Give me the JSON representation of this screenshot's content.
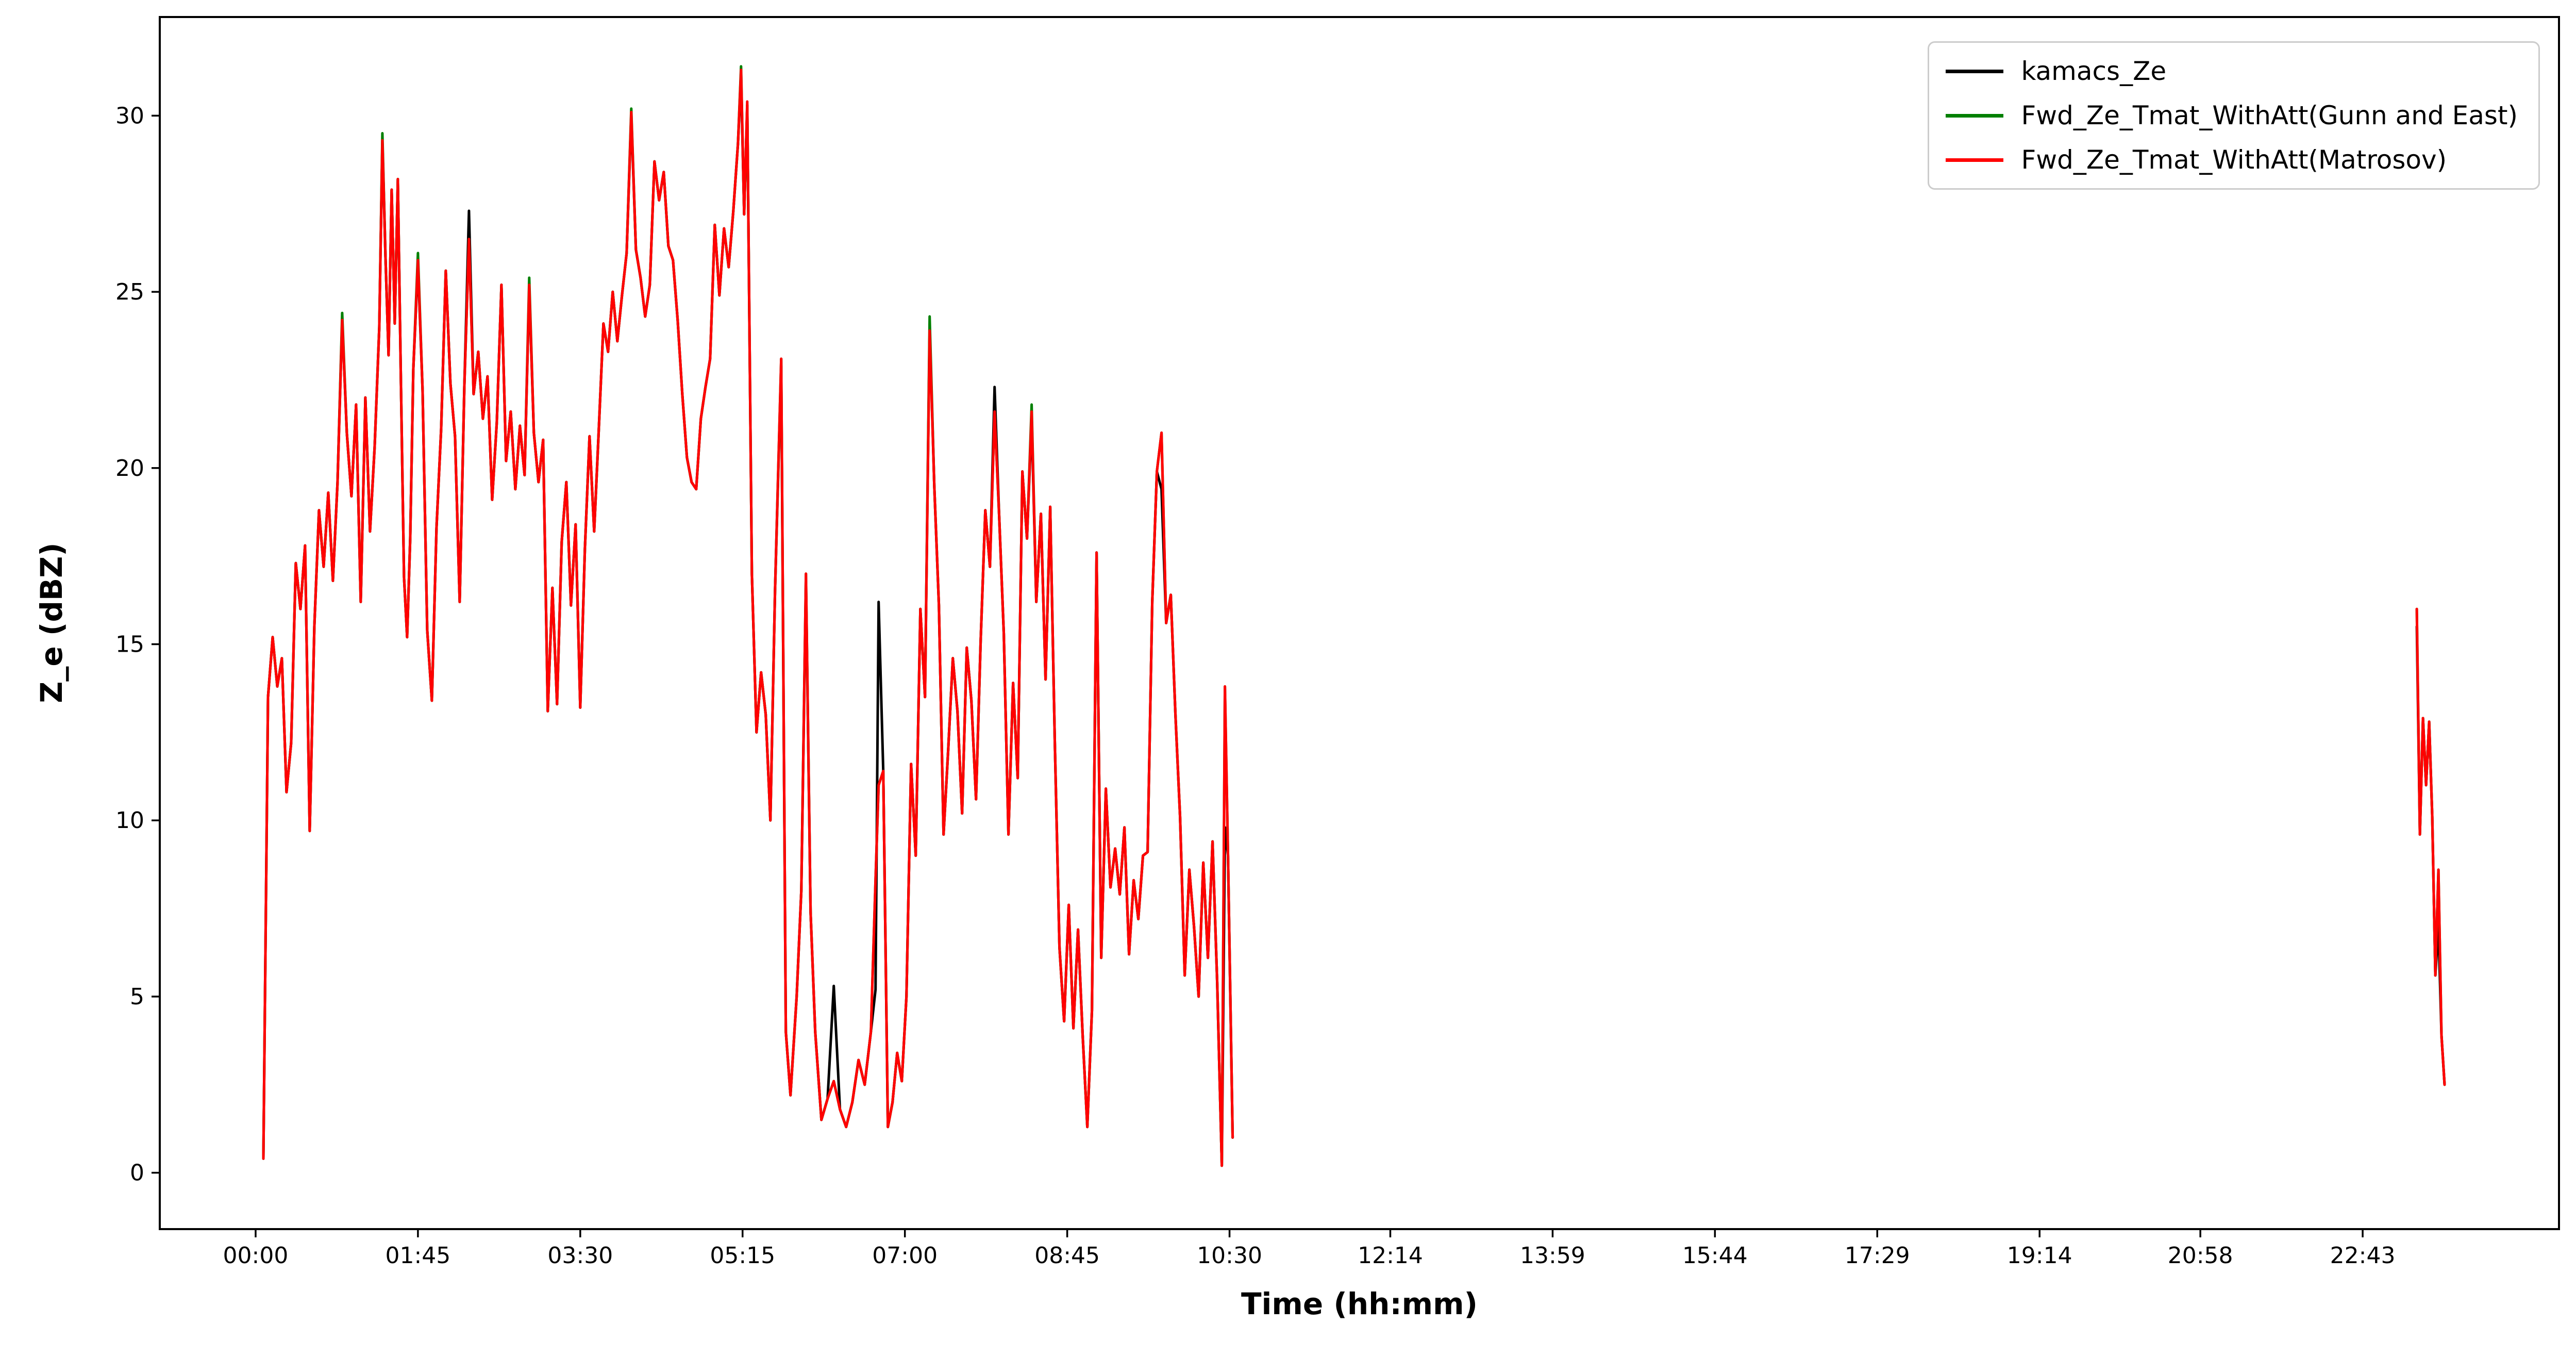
{
  "chart_data": {
    "type": "line",
    "title": "",
    "xlabel": "Time (hh:mm)",
    "ylabel": "Z_e (dBZ)",
    "legend_position": "upper right",
    "grid": false,
    "x_unit": "minutes since 00:00",
    "xlim": [
      -62,
      1490
    ],
    "ylim": [
      -1.6,
      32.8
    ],
    "y_ticks": [
      0,
      5,
      10,
      15,
      20,
      25,
      30
    ],
    "x_ticks": [
      {
        "t": 0,
        "label": "00:00"
      },
      {
        "t": 105,
        "label": "01:45"
      },
      {
        "t": 210,
        "label": "03:30"
      },
      {
        "t": 315,
        "label": "05:15"
      },
      {
        "t": 420,
        "label": "07:00"
      },
      {
        "t": 525,
        "label": "08:45"
      },
      {
        "t": 630,
        "label": "10:30"
      },
      {
        "t": 734,
        "label": "12:14"
      },
      {
        "t": 839,
        "label": "13:59"
      },
      {
        "t": 944,
        "label": "15:44"
      },
      {
        "t": 1049,
        "label": "17:29"
      },
      {
        "t": 1154,
        "label": "19:14"
      },
      {
        "t": 1258,
        "label": "20:58"
      },
      {
        "t": 1363,
        "label": "22:43"
      }
    ],
    "x": [
      5,
      8,
      11,
      14,
      17,
      20,
      23,
      26,
      29,
      32,
      35,
      38,
      41,
      44,
      47,
      50,
      53,
      56,
      59,
      62,
      65,
      68,
      71,
      74,
      77,
      80,
      82,
      84,
      86,
      88,
      90,
      92,
      94,
      96,
      98,
      100,
      102,
      105,
      108,
      111,
      114,
      117,
      120,
      123,
      126,
      129,
      132,
      135,
      138,
      141,
      144,
      147,
      150,
      153,
      156,
      159,
      162,
      165,
      168,
      171,
      174,
      177,
      180,
      183,
      186,
      189,
      192,
      195,
      198,
      201,
      204,
      207,
      210,
      213,
      216,
      219,
      222,
      225,
      228,
      231,
      234,
      237,
      240,
      243,
      246,
      249,
      252,
      255,
      258,
      261,
      264,
      267,
      270,
      273,
      276,
      279,
      282,
      285,
      288,
      291,
      294,
      297,
      300,
      303,
      306,
      309,
      312,
      314,
      316,
      318,
      321,
      324,
      327,
      330,
      333,
      336,
      340,
      343,
      346,
      350,
      353,
      356,
      359,
      362,
      366,
      370,
      374,
      378,
      382,
      386,
      390,
      394,
      398,
      401,
      403,
      406,
      409,
      412,
      415,
      418,
      421,
      424,
      427,
      430,
      433,
      436,
      439,
      442,
      445,
      448,
      451,
      454,
      457,
      460,
      463,
      466,
      469,
      472,
      475,
      478,
      481,
      484,
      487,
      490,
      493,
      496,
      499,
      502,
      505,
      508,
      511,
      514,
      517,
      520,
      523,
      526,
      529,
      532,
      535,
      538,
      541,
      544,
      547,
      550,
      553,
      556,
      559,
      562,
      565,
      568,
      571,
      574,
      577,
      580,
      583,
      586,
      589,
      592,
      595,
      598,
      601,
      604,
      607,
      610,
      613,
      616,
      619,
      622,
      625,
      627,
      629,
      632,
      1000,
      1398,
      1400,
      1402,
      1404,
      1406,
      1408,
      1410,
      1412,
      1414,
      1416
    ],
    "series": [
      {
        "name": "kamacs_Ze",
        "color": "#000000",
        "values": [
          0.4,
          13.5,
          15.2,
          13.8,
          14.6,
          10.8,
          12.2,
          17.3,
          16.0,
          17.8,
          9.7,
          15.5,
          18.8,
          17.2,
          19.3,
          16.8,
          19.6,
          24.2,
          21.0,
          19.2,
          21.8,
          16.2,
          22.0,
          18.2,
          20.6,
          24.0,
          29.3,
          26.0,
          23.2,
          27.9,
          24.1,
          28.2,
          22.4,
          16.9,
          15.2,
          18.0,
          22.8,
          25.8,
          22.2,
          15.4,
          13.4,
          18.3,
          21.1,
          25.6,
          22.4,
          20.9,
          16.2,
          22.3,
          27.3,
          22.1,
          23.3,
          21.4,
          22.6,
          19.1,
          21.3,
          25.2,
          20.2,
          21.6,
          19.4,
          21.2,
          19.8,
          25.1,
          21.0,
          19.6,
          20.8,
          13.1,
          16.6,
          13.3,
          17.9,
          19.6,
          16.1,
          18.4,
          13.2,
          17.7,
          20.9,
          18.2,
          21.1,
          24.1,
          23.3,
          25.0,
          23.6,
          24.9,
          26.1,
          30.0,
          26.2,
          25.4,
          24.3,
          25.2,
          28.7,
          27.6,
          28.4,
          26.3,
          25.9,
          24.2,
          22.1,
          20.3,
          19.6,
          19.4,
          21.4,
          22.3,
          23.1,
          26.9,
          24.9,
          26.8,
          25.7,
          27.3,
          29.2,
          31.1,
          27.2,
          30.3,
          17.0,
          12.5,
          14.2,
          13.0,
          10.0,
          16.5,
          22.9,
          4.0,
          2.2,
          5.0,
          8.0,
          16.8,
          7.4,
          4.0,
          1.5,
          2.1,
          5.3,
          1.8,
          1.3,
          2.0,
          3.2,
          2.5,
          4.0,
          5.2,
          16.2,
          11.4,
          1.3,
          2.0,
          3.4,
          2.6,
          5.0,
          11.6,
          9.0,
          16.0,
          13.5,
          24.0,
          19.5,
          16.1,
          9.6,
          12.0,
          14.6,
          13.1,
          10.2,
          14.9,
          13.4,
          10.6,
          15.1,
          18.8,
          17.2,
          22.3,
          18.6,
          15.3,
          9.6,
          13.9,
          11.2,
          19.9,
          18.0,
          21.4,
          16.2,
          18.7,
          14.0,
          18.9,
          12.2,
          6.4,
          4.3,
          7.6,
          4.1,
          6.9,
          3.9,
          1.3,
          4.6,
          17.6,
          6.1,
          10.9,
          8.1,
          9.2,
          7.9,
          9.8,
          6.2,
          8.3,
          7.2,
          9.0,
          9.1,
          16.2,
          19.9,
          19.4,
          15.6,
          16.4,
          13.0,
          10.1,
          5.6,
          8.6,
          7.0,
          5.0,
          8.8,
          6.1,
          9.4,
          5.4,
          0.2,
          9.8,
          9.0,
          1.0,
          null,
          15.5,
          9.6,
          12.9,
          11.0,
          12.8,
          10.1,
          5.6,
          7.0,
          3.9,
          2.5
        ]
      },
      {
        "name": "Fwd_Ze_Tmat_WithAtt(Gunn and East)",
        "color": "#008000",
        "values": [
          0.4,
          13.5,
          15.2,
          13.8,
          14.6,
          10.8,
          12.2,
          17.3,
          16.0,
          17.8,
          9.7,
          15.5,
          18.8,
          17.2,
          19.3,
          16.8,
          19.6,
          24.4,
          21.0,
          19.2,
          21.8,
          16.2,
          22.0,
          18.2,
          20.6,
          24.0,
          29.5,
          26.0,
          23.2,
          27.9,
          24.1,
          28.2,
          22.4,
          16.9,
          15.2,
          18.0,
          22.8,
          26.1,
          22.2,
          15.4,
          13.4,
          18.3,
          21.1,
          25.6,
          22.4,
          20.9,
          16.2,
          22.3,
          26.5,
          22.1,
          23.3,
          21.4,
          22.6,
          19.1,
          21.3,
          25.2,
          20.2,
          21.6,
          19.4,
          21.2,
          19.8,
          25.4,
          21.0,
          19.6,
          20.8,
          13.1,
          16.6,
          13.3,
          17.9,
          19.6,
          16.1,
          18.4,
          13.2,
          17.7,
          20.9,
          18.2,
          21.1,
          24.1,
          23.3,
          25.0,
          23.6,
          24.9,
          26.1,
          30.2,
          26.2,
          25.4,
          24.3,
          25.2,
          28.7,
          27.6,
          28.4,
          26.3,
          25.9,
          24.2,
          22.1,
          20.3,
          19.6,
          19.4,
          21.4,
          22.3,
          23.1,
          26.9,
          24.9,
          26.8,
          25.7,
          27.3,
          29.2,
          31.4,
          27.2,
          30.3,
          17.0,
          12.5,
          14.2,
          13.0,
          10.0,
          16.5,
          23.1,
          4.0,
          2.2,
          5.0,
          8.0,
          17.0,
          7.4,
          4.0,
          1.5,
          2.1,
          2.6,
          1.8,
          1.3,
          2.0,
          3.2,
          2.5,
          4.0,
          8.3,
          11.0,
          11.4,
          1.3,
          2.0,
          3.4,
          2.6,
          5.0,
          11.6,
          9.0,
          16.0,
          13.5,
          24.3,
          19.5,
          16.1,
          9.6,
          12.0,
          14.6,
          13.1,
          10.2,
          14.9,
          13.4,
          10.6,
          15.1,
          18.8,
          17.2,
          21.6,
          18.6,
          15.3,
          9.6,
          13.9,
          11.2,
          19.9,
          18.0,
          21.8,
          16.2,
          18.7,
          14.0,
          18.9,
          12.2,
          6.4,
          4.3,
          7.6,
          4.1,
          6.9,
          3.9,
          1.3,
          4.6,
          17.6,
          6.1,
          10.9,
          8.1,
          9.2,
          7.9,
          9.8,
          6.2,
          8.3,
          7.2,
          9.0,
          9.1,
          16.2,
          19.9,
          21.0,
          15.6,
          16.4,
          13.0,
          10.1,
          5.6,
          8.6,
          7.0,
          5.0,
          8.8,
          6.1,
          9.4,
          5.4,
          0.2,
          13.8,
          9.0,
          1.0,
          null,
          16.0,
          9.6,
          12.9,
          11.0,
          12.8,
          10.1,
          5.6,
          8.6,
          3.9,
          2.5
        ]
      },
      {
        "name": "Fwd_Ze_Tmat_WithAtt(Matrosov)",
        "color": "#ff0000",
        "values": [
          0.4,
          13.5,
          15.2,
          13.8,
          14.6,
          10.8,
          12.2,
          17.3,
          16.0,
          17.8,
          9.7,
          15.5,
          18.8,
          17.2,
          19.3,
          16.8,
          19.6,
          24.2,
          21.0,
          19.2,
          21.8,
          16.2,
          22.0,
          18.2,
          20.6,
          24.0,
          29.3,
          26.0,
          23.2,
          27.9,
          24.1,
          28.2,
          22.4,
          16.9,
          15.2,
          18.0,
          22.8,
          25.9,
          22.2,
          15.4,
          13.4,
          18.3,
          21.1,
          25.6,
          22.4,
          20.9,
          16.2,
          22.3,
          26.5,
          22.1,
          23.3,
          21.4,
          22.6,
          19.1,
          21.3,
          25.2,
          20.2,
          21.6,
          19.4,
          21.2,
          19.8,
          25.2,
          21.0,
          19.6,
          20.8,
          13.1,
          16.6,
          13.3,
          17.9,
          19.6,
          16.1,
          18.4,
          13.2,
          17.7,
          20.9,
          18.2,
          21.1,
          24.1,
          23.3,
          25.0,
          23.6,
          24.9,
          26.1,
          30.1,
          26.2,
          25.4,
          24.3,
          25.2,
          28.7,
          27.6,
          28.4,
          26.3,
          25.9,
          24.2,
          22.1,
          20.3,
          19.6,
          19.4,
          21.4,
          22.3,
          23.1,
          26.9,
          24.9,
          26.8,
          25.7,
          27.3,
          29.2,
          31.3,
          27.2,
          30.4,
          17.0,
          12.5,
          14.2,
          13.0,
          10.0,
          16.5,
          23.1,
          4.0,
          2.2,
          5.0,
          8.0,
          17.0,
          7.4,
          4.0,
          1.5,
          2.1,
          2.6,
          1.8,
          1.3,
          2.0,
          3.2,
          2.5,
          4.0,
          8.3,
          11.0,
          11.4,
          1.3,
          2.0,
          3.4,
          2.6,
          5.0,
          11.6,
          9.0,
          16.0,
          13.5,
          23.9,
          19.5,
          16.1,
          9.6,
          12.0,
          14.6,
          13.1,
          10.2,
          14.9,
          13.4,
          10.6,
          15.1,
          18.8,
          17.2,
          21.6,
          18.6,
          15.3,
          9.6,
          13.9,
          11.2,
          19.9,
          18.0,
          21.6,
          16.2,
          18.7,
          14.0,
          18.9,
          12.2,
          6.4,
          4.3,
          7.6,
          4.1,
          6.9,
          3.9,
          1.3,
          4.6,
          17.6,
          6.1,
          10.9,
          8.1,
          9.2,
          7.9,
          9.8,
          6.2,
          8.3,
          7.2,
          9.0,
          9.1,
          16.2,
          19.9,
          21.0,
          15.6,
          16.4,
          13.0,
          10.1,
          5.6,
          8.6,
          7.0,
          5.0,
          8.8,
          6.1,
          9.4,
          5.4,
          0.2,
          13.8,
          9.0,
          1.0,
          null,
          16.0,
          9.6,
          12.9,
          11.0,
          12.8,
          10.1,
          5.6,
          8.6,
          3.9,
          2.5
        ]
      }
    ]
  }
}
